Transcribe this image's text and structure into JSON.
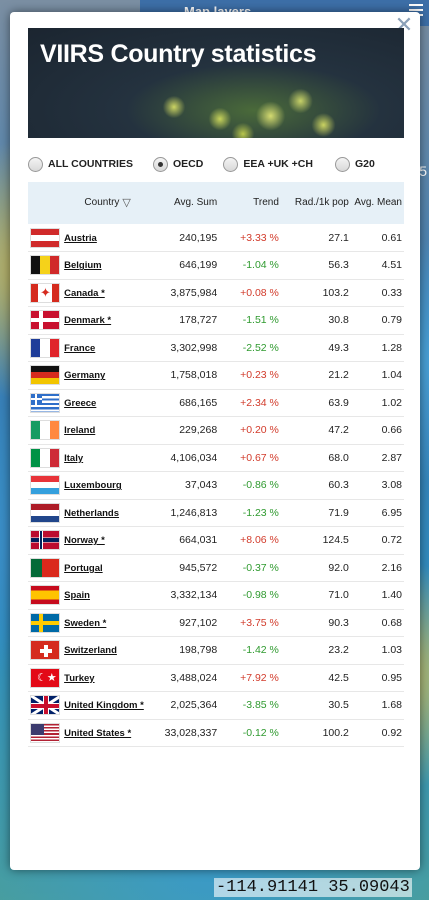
{
  "map": {
    "topbar_label": "Map layers",
    "side_number": "5",
    "coords": "-114.91141 35.09043"
  },
  "modal": {
    "title": "VIIRS Country statistics",
    "close_icon": "close-icon"
  },
  "filters": [
    {
      "label": "ALL COUNTRIES",
      "checked": false
    },
    {
      "label": "OECD",
      "checked": true
    },
    {
      "label": "EEA +UK +CH",
      "checked": false
    },
    {
      "label": "G20",
      "checked": false
    }
  ],
  "table": {
    "headers": {
      "country": "Country",
      "avg_sum": "Avg. Sum",
      "trend": "Trend",
      "rad_pop": "Rad./1k pop",
      "avg_mean": "Avg. Mean"
    },
    "rows": [
      {
        "country": "Austria",
        "avg_sum": "240,195",
        "trend": "+3.33 %",
        "rad_pop": "27.1",
        "avg_mean": "0.61"
      },
      {
        "country": "Belgium",
        "avg_sum": "646,199",
        "trend": "-1.04 %",
        "rad_pop": "56.3",
        "avg_mean": "4.51"
      },
      {
        "country": "Canada *",
        "avg_sum": "3,875,984",
        "trend": "+0.08 %",
        "rad_pop": "103.2",
        "avg_mean": "0.33"
      },
      {
        "country": "Denmark *",
        "avg_sum": "178,727",
        "trend": "-1.51 %",
        "rad_pop": "30.8",
        "avg_mean": "0.79"
      },
      {
        "country": "France",
        "avg_sum": "3,302,998",
        "trend": "-2.52 %",
        "rad_pop": "49.3",
        "avg_mean": "1.28"
      },
      {
        "country": "Germany",
        "avg_sum": "1,758,018",
        "trend": "+0.23 %",
        "rad_pop": "21.2",
        "avg_mean": "1.04"
      },
      {
        "country": "Greece",
        "avg_sum": "686,165",
        "trend": "+2.34 %",
        "rad_pop": "63.9",
        "avg_mean": "1.02"
      },
      {
        "country": "Ireland",
        "avg_sum": "229,268",
        "trend": "+0.20 %",
        "rad_pop": "47.2",
        "avg_mean": "0.66"
      },
      {
        "country": "Italy",
        "avg_sum": "4,106,034",
        "trend": "+0.67 %",
        "rad_pop": "68.0",
        "avg_mean": "2.87"
      },
      {
        "country": "Luxembourg",
        "avg_sum": "37,043",
        "trend": "-0.86 %",
        "rad_pop": "60.3",
        "avg_mean": "3.08"
      },
      {
        "country": "Netherlands",
        "avg_sum": "1,246,813",
        "trend": "-1.23 %",
        "rad_pop": "71.9",
        "avg_mean": "6.95"
      },
      {
        "country": "Norway *",
        "avg_sum": "664,031",
        "trend": "+8.06 %",
        "rad_pop": "124.5",
        "avg_mean": "0.72"
      },
      {
        "country": "Portugal",
        "avg_sum": "945,572",
        "trend": "-0.37 %",
        "rad_pop": "92.0",
        "avg_mean": "2.16"
      },
      {
        "country": "Spain",
        "avg_sum": "3,332,134",
        "trend": "-0.98 %",
        "rad_pop": "71.0",
        "avg_mean": "1.40"
      },
      {
        "country": "Sweden *",
        "avg_sum": "927,102",
        "trend": "+3.75 %",
        "rad_pop": "90.3",
        "avg_mean": "0.68"
      },
      {
        "country": "Switzerland",
        "avg_sum": "198,798",
        "trend": "-1.42 %",
        "rad_pop": "23.2",
        "avg_mean": "1.03"
      },
      {
        "country": "Turkey",
        "avg_sum": "3,488,024",
        "trend": "+7.92 %",
        "rad_pop": "42.5",
        "avg_mean": "0.95"
      },
      {
        "country": "United Kingdom *",
        "avg_sum": "2,025,364",
        "trend": "-3.85 %",
        "rad_pop": "30.5",
        "avg_mean": "1.68"
      },
      {
        "country": "United States *",
        "avg_sum": "33,028,337",
        "trend": "-0.12 %",
        "rad_pop": "100.2",
        "avg_mean": "0.92"
      }
    ]
  },
  "colors": {
    "trend_up": "#d23b2b",
    "trend_down": "#2f9a2f",
    "header_bg": "#e6f0f7"
  }
}
